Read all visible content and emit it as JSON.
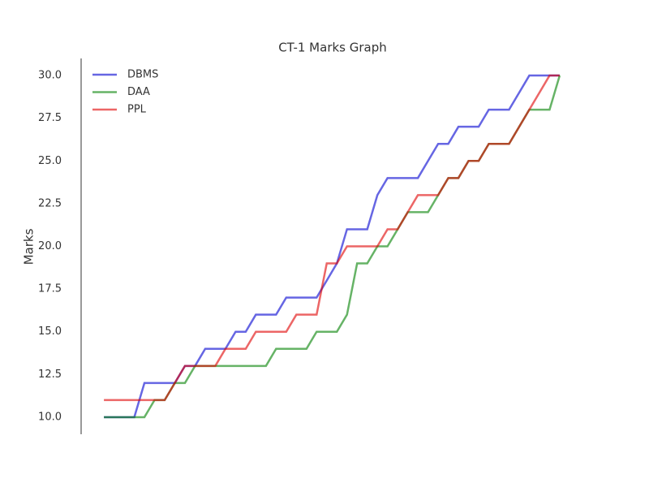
{
  "chart_data": {
    "type": "line",
    "title": "CT-1 Marks Graph",
    "y_label": "Marks",
    "ylim": [
      9,
      31
    ],
    "yticks": [
      {
        "value": 10,
        "label": "10.0"
      },
      12.5,
      {
        "value": 15,
        "label": "15.0"
      },
      17.5,
      {
        "value": 20,
        "label": "20.0"
      },
      22.5,
      {
        "value": 25,
        "label": "25.0"
      },
      27.5,
      {
        "value": 30,
        "label": "30.0"
      }
    ],
    "grid": false,
    "legend": "upper left",
    "series": [
      {
        "name": "DBMS",
        "color": "#0000d0",
        "values": [
          10,
          10,
          10,
          10,
          12,
          12,
          12,
          12,
          13,
          13,
          14,
          14,
          14,
          15,
          15,
          16,
          16,
          16,
          17,
          17,
          17,
          17,
          18,
          19,
          21,
          21,
          21,
          23,
          24,
          24,
          24,
          24,
          25,
          26,
          26,
          27,
          27,
          27,
          28,
          28,
          28,
          29,
          30,
          30,
          30,
          30
        ]
      },
      {
        "name": "DAA",
        "color": "#008000",
        "values": [
          10,
          10,
          10,
          10,
          10,
          11,
          11,
          12,
          12,
          13,
          13,
          13,
          13,
          13,
          13,
          13,
          13,
          14,
          14,
          14,
          14,
          15,
          15,
          15,
          16,
          19,
          19,
          20,
          20,
          21,
          22,
          22,
          22,
          23,
          24,
          24,
          25,
          25,
          26,
          26,
          26,
          27,
          28,
          28,
          28,
          30
        ]
      },
      {
        "name": "PPL",
        "color": "#e00000",
        "values": [
          11,
          11,
          11,
          11,
          11,
          11,
          11,
          12,
          13,
          13,
          13,
          13,
          14,
          14,
          14,
          15,
          15,
          15,
          15,
          16,
          16,
          16,
          19,
          19,
          20,
          20,
          20,
          20,
          21,
          21,
          22,
          23,
          23,
          23,
          24,
          24,
          25,
          25,
          26,
          26,
          26,
          27,
          28,
          29,
          30,
          30
        ]
      }
    ]
  }
}
